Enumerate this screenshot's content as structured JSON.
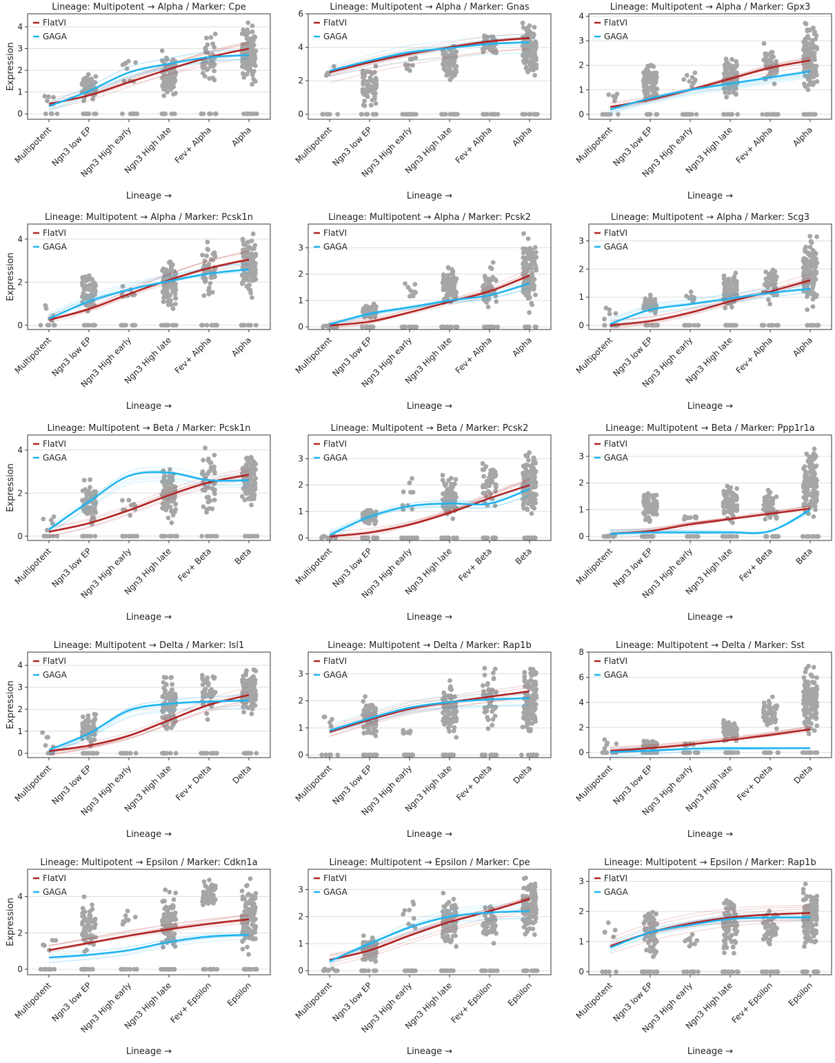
{
  "chart_data": [
    {
      "type": "line",
      "title": "Lineage: Multipotent → Alpha / Marker: Cpe",
      "xlabel": "Lineage →",
      "ylabel": "Expression",
      "categories": [
        "Multipotent",
        "Ngn3 low EP",
        "Ngn3 High early",
        "Ngn3 High late",
        "Fev+ Alpha",
        "Alpha"
      ],
      "ylim": [
        -0.25,
        4.6
      ],
      "yticks": [
        0,
        1,
        2,
        3,
        4
      ],
      "series": [
        {
          "name": "FlatVI",
          "values": [
            0.45,
            0.85,
            1.45,
            2.05,
            2.6,
            3.0
          ]
        },
        {
          "name": "GAGA",
          "values": [
            0.35,
            1.05,
            1.9,
            2.3,
            2.6,
            2.7
          ]
        }
      ],
      "scatter_ranges": [
        [
          0,
          1.3
        ],
        [
          0.4,
          2.1
        ],
        [
          0.9,
          3.1
        ],
        [
          0.5,
          3.0
        ],
        [
          1.2,
          3.9
        ],
        [
          1.1,
          4.4
        ]
      ]
    },
    {
      "type": "line",
      "title": "Lineage: Multipotent → Alpha / Marker: Gnas",
      "xlabel": "Lineage →",
      "ylabel": "",
      "categories": [
        "Multipotent",
        "Ngn3 low EP",
        "Ngn3 High early",
        "Ngn3 High late",
        "Fev+ Alpha",
        "Alpha"
      ],
      "ylim": [
        -0.3,
        6
      ],
      "yticks": [
        0,
        2,
        4,
        6
      ],
      "series": [
        {
          "name": "FlatVI",
          "values": [
            2.5,
            3.1,
            3.6,
            4.0,
            4.35,
            4.55
          ]
        },
        {
          "name": "GAGA",
          "values": [
            2.6,
            3.2,
            3.7,
            3.95,
            4.2,
            4.3
          ]
        }
      ],
      "scatter_ranges": [
        [
          1.5,
          3.0
        ],
        [
          0,
          3.4
        ],
        [
          2.3,
          3.9
        ],
        [
          1.8,
          4.5
        ],
        [
          3.3,
          5.0
        ],
        [
          1.5,
          5.8
        ]
      ]
    },
    {
      "type": "line",
      "title": "Lineage: Multipotent → Alpha / Marker: Gpx3",
      "xlabel": "Lineage →",
      "ylabel": "",
      "categories": [
        "Multipotent",
        "Ngn3 low EP",
        "Ngn3 High early",
        "Ngn3 High late",
        "Fev+ Alpha",
        "Alpha"
      ],
      "ylim": [
        -0.2,
        4.1
      ],
      "yticks": [
        0,
        1,
        2,
        3,
        4
      ],
      "series": [
        {
          "name": "FlatVI",
          "values": [
            0.3,
            0.6,
            1.0,
            1.45,
            1.9,
            2.2
          ]
        },
        {
          "name": "GAGA",
          "values": [
            0.2,
            0.65,
            1.0,
            1.25,
            1.5,
            1.75
          ]
        }
      ],
      "scatter_ranges": [
        [
          0,
          1.4
        ],
        [
          0.2,
          2.4
        ],
        [
          0.9,
          1.9
        ],
        [
          0.4,
          2.6
        ],
        [
          0.9,
          3.1
        ],
        [
          0.7,
          4.0
        ]
      ]
    },
    {
      "type": "line",
      "title": "Lineage: Multipotent → Alpha / Marker: Pcsk1n",
      "xlabel": "Lineage →",
      "ylabel": "Expression",
      "categories": [
        "Multipotent",
        "Ngn3 low EP",
        "Ngn3 High early",
        "Ngn3 High late",
        "Fev+ Alpha",
        "Alpha"
      ],
      "ylim": [
        -0.2,
        4.7
      ],
      "yticks": [
        0,
        2,
        4
      ],
      "series": [
        {
          "name": "FlatVI",
          "values": [
            0.25,
            0.75,
            1.45,
            2.1,
            2.65,
            3.05
          ]
        },
        {
          "name": "GAGA",
          "values": [
            0.3,
            1.1,
            1.65,
            2.05,
            2.4,
            2.6
          ]
        }
      ],
      "scatter_ranges": [
        [
          0,
          1.3
        ],
        [
          0.2,
          2.9
        ],
        [
          0.8,
          2.1
        ],
        [
          0.3,
          3.5
        ],
        [
          1.0,
          4.2
        ],
        [
          1.1,
          4.6
        ]
      ]
    },
    {
      "type": "line",
      "title": "Lineage: Multipotent → Alpha / Marker: Pcsk2",
      "xlabel": "Lineage →",
      "ylabel": "",
      "categories": [
        "Multipotent",
        "Ngn3 low EP",
        "Ngn3 High early",
        "Ngn3 High late",
        "Fev+ Alpha",
        "Alpha"
      ],
      "ylim": [
        -0.1,
        3.9
      ],
      "yticks": [
        0,
        1,
        2,
        3
      ],
      "series": [
        {
          "name": "FlatVI",
          "values": [
            0.05,
            0.2,
            0.55,
            0.95,
            1.35,
            1.95
          ]
        },
        {
          "name": "GAGA",
          "values": [
            0.1,
            0.5,
            0.75,
            1.0,
            1.2,
            1.65
          ]
        }
      ],
      "scatter_ranges": [
        [
          0,
          0.1
        ],
        [
          0.3,
          0.9
        ],
        [
          0.7,
          2.4
        ],
        [
          0.5,
          2.5
        ],
        [
          0.6,
          2.7
        ],
        [
          0.4,
          3.8
        ]
      ]
    },
    {
      "type": "line",
      "title": "Lineage: Multipotent → Alpha / Marker: Scg3",
      "xlabel": "Lineage →",
      "ylabel": "",
      "categories": [
        "Multipotent",
        "Ngn3 low EP",
        "Ngn3 High early",
        "Ngn3 High late",
        "Fev+ Alpha",
        "Alpha"
      ],
      "ylim": [
        -0.15,
        3.6
      ],
      "yticks": [
        0,
        1,
        2,
        3
      ],
      "series": [
        {
          "name": "FlatVI",
          "values": [
            0.0,
            0.15,
            0.45,
            0.85,
            1.2,
            1.6
          ]
        },
        {
          "name": "GAGA",
          "values": [
            0.05,
            0.55,
            0.75,
            0.95,
            1.15,
            1.3
          ]
        }
      ],
      "scatter_ranges": [
        [
          0,
          1.2
        ],
        [
          0.3,
          1.1
        ],
        [
          0.7,
          1.3
        ],
        [
          0.4,
          2.0
        ],
        [
          0.6,
          2.4
        ],
        [
          0.4,
          3.5
        ]
      ]
    },
    {
      "type": "line",
      "title": "Lineage: Multipotent → Beta / Marker: Pcsk1n",
      "xlabel": "Lineage →",
      "ylabel": "Expression",
      "categories": [
        "Multipotent",
        "Ngn3 low EP",
        "Ngn3 High early",
        "Ngn3 High late",
        "Fev+ Beta",
        "Beta"
      ],
      "ylim": [
        -0.2,
        4.7
      ],
      "yticks": [
        0,
        2,
        4
      ],
      "series": [
        {
          "name": "FlatVI",
          "values": [
            0.2,
            0.6,
            1.2,
            1.9,
            2.5,
            2.85
          ]
        },
        {
          "name": "GAGA",
          "values": [
            0.3,
            1.6,
            2.8,
            2.95,
            2.6,
            2.6
          ]
        }
      ],
      "scatter_ranges": [
        [
          0,
          1.3
        ],
        [
          0.2,
          2.9
        ],
        [
          0.7,
          2.1
        ],
        [
          0.4,
          3.6
        ],
        [
          0.6,
          4.5
        ],
        [
          1.0,
          4.5
        ]
      ]
    },
    {
      "type": "line",
      "title": "Lineage: Multipotent → Beta / Marker: Pcsk2",
      "xlabel": "Lineage →",
      "ylabel": "",
      "categories": [
        "Multipotent",
        "Ngn3 low EP",
        "Ngn3 High early",
        "Ngn3 High late",
        "Fev+ Beta",
        "Beta"
      ],
      "ylim": [
        -0.1,
        3.9
      ],
      "yticks": [
        0,
        1,
        2,
        3
      ],
      "series": [
        {
          "name": "FlatVI",
          "values": [
            0.05,
            0.2,
            0.5,
            0.95,
            1.5,
            2.0
          ]
        },
        {
          "name": "GAGA",
          "values": [
            0.1,
            0.8,
            1.2,
            1.3,
            1.3,
            1.85
          ]
        }
      ],
      "scatter_ranges": [
        [
          0,
          0.1
        ],
        [
          0.4,
          1.2
        ],
        [
          0.7,
          2.4
        ],
        [
          0.5,
          2.5
        ],
        [
          0.7,
          3.4
        ],
        [
          0.4,
          3.7
        ]
      ]
    },
    {
      "type": "line",
      "title": "Lineage: Multipotent → Beta / Marker: Ppp1r1a",
      "xlabel": "Lineage →",
      "ylabel": "",
      "categories": [
        "Multipotent",
        "Ngn3 low EP",
        "Ngn3 High early",
        "Ngn3 High late",
        "Fev+ Beta",
        "Beta"
      ],
      "ylim": [
        -0.15,
        3.8
      ],
      "yticks": [
        0,
        1,
        2,
        3
      ],
      "series": [
        {
          "name": "FlatVI",
          "values": [
            0.1,
            0.2,
            0.45,
            0.65,
            0.85,
            1.05
          ]
        },
        {
          "name": "GAGA",
          "values": [
            0.1,
            0.15,
            0.15,
            0.15,
            0.2,
            1.0
          ]
        }
      ],
      "scatter_ranges": [
        [
          0,
          0.05
        ],
        [
          0.3,
          1.9
        ],
        [
          0.6,
          0.8
        ],
        [
          0.4,
          2.1
        ],
        [
          0.5,
          1.8
        ],
        [
          0.3,
          3.7
        ]
      ]
    },
    {
      "type": "line",
      "title": "Lineage: Multipotent → Delta / Marker: Isl1",
      "xlabel": "Lineage →",
      "ylabel": "Expression",
      "categories": [
        "Multipotent",
        "Ngn3 low EP",
        "Ngn3 High early",
        "Ngn3 High late",
        "Fev+ Delta",
        "Delta"
      ],
      "ylim": [
        -0.2,
        4.6
      ],
      "yticks": [
        0,
        1,
        2,
        3,
        4
      ],
      "series": [
        {
          "name": "FlatVI",
          "values": [
            0.1,
            0.35,
            0.8,
            1.5,
            2.2,
            2.65
          ]
        },
        {
          "name": "GAGA",
          "values": [
            0.15,
            0.9,
            1.95,
            2.25,
            2.35,
            2.4
          ]
        }
      ],
      "scatter_ranges": [
        [
          0,
          1.3
        ],
        [
          0.3,
          1.9
        ],
        [
          0,
          0
        ],
        [
          0.4,
          4.0
        ],
        [
          1.3,
          4.5
        ],
        [
          1.6,
          4.1
        ]
      ]
    },
    {
      "type": "line",
      "title": "Lineage: Multipotent → Delta / Marker: Rap1b",
      "xlabel": "Lineage →",
      "ylabel": "",
      "categories": [
        "Multipotent",
        "Ngn3 low EP",
        "Ngn3 High early",
        "Ngn3 High late",
        "Fev+ Delta",
        "Delta"
      ],
      "ylim": [
        -0.1,
        3.8
      ],
      "yticks": [
        0,
        1,
        2,
        3
      ],
      "series": [
        {
          "name": "FlatVI",
          "values": [
            0.85,
            1.3,
            1.7,
            1.95,
            2.15,
            2.35
          ]
        },
        {
          "name": "GAGA",
          "values": [
            0.9,
            1.35,
            1.75,
            1.95,
            2.05,
            2.1
          ]
        }
      ],
      "scatter_ranges": [
        [
          0.8,
          1.9
        ],
        [
          0.2,
          2.5
        ],
        [
          0.7,
          1.0
        ],
        [
          0.3,
          2.9
        ],
        [
          0.7,
          3.7
        ],
        [
          0.5,
          3.6
        ]
      ]
    },
    {
      "type": "line",
      "title": "Lineage: Multipotent → Delta / Marker: Sst",
      "xlabel": "Lineage →",
      "ylabel": "",
      "categories": [
        "Multipotent",
        "Ngn3 low EP",
        "Ngn3 High early",
        "Ngn3 High late",
        "Fev+ Delta",
        "Delta"
      ],
      "ylim": [
        -0.4,
        8
      ],
      "yticks": [
        0,
        2,
        4,
        6,
        8
      ],
      "series": [
        {
          "name": "FlatVI",
          "values": [
            0.15,
            0.35,
            0.65,
            1.0,
            1.4,
            1.85
          ]
        },
        {
          "name": "GAGA",
          "values": [
            0.05,
            0.15,
            0.3,
            0.35,
            0.35,
            0.35
          ]
        }
      ],
      "scatter_ranges": [
        [
          0,
          1.3
        ],
        [
          0.2,
          1.1
        ],
        [
          0.5,
          0.8
        ],
        [
          0.7,
          2.8
        ],
        [
          1.0,
          5.1
        ],
        [
          1.0,
          7.6
        ]
      ]
    },
    {
      "type": "line",
      "title": "Lineage: Multipotent → Epsilon / Marker: Cdkn1a",
      "xlabel": "Lineage →",
      "ylabel": "Expression",
      "categories": [
        "Multipotent",
        "Ngn3 low EP",
        "Ngn3 High early",
        "Ngn3 High late",
        "Fev+ Epsilon",
        "Epsilon"
      ],
      "ylim": [
        -0.3,
        5.5
      ],
      "yticks": [
        0,
        2,
        4
      ],
      "series": [
        {
          "name": "FlatVI",
          "values": [
            1.05,
            1.45,
            1.85,
            2.2,
            2.5,
            2.75
          ]
        },
        {
          "name": "GAGA",
          "values": [
            0.65,
            0.8,
            1.05,
            1.5,
            1.8,
            1.9
          ]
        }
      ],
      "scatter_ranges": [
        [
          0.8,
          2.0
        ],
        [
          0.4,
          4.3
        ],
        [
          1.3,
          3.5
        ],
        [
          0.4,
          4.8
        ],
        [
          2.8,
          5.3
        ],
        [
          0.4,
          5.2
        ]
      ]
    },
    {
      "type": "line",
      "title": "Lineage: Multipotent → Epsilon / Marker: Cpe",
      "xlabel": "Lineage →",
      "ylabel": "",
      "categories": [
        "Multipotent",
        "Ngn3 low EP",
        "Ngn3 High early",
        "Ngn3 High late",
        "Fev+ Epsilon",
        "Epsilon"
      ],
      "ylim": [
        -0.15,
        3.75
      ],
      "yticks": [
        0,
        1,
        2,
        3
      ],
      "series": [
        {
          "name": "FlatVI",
          "values": [
            0.4,
            0.75,
            1.3,
            1.8,
            2.2,
            2.65
          ]
        },
        {
          "name": "GAGA",
          "values": [
            0.35,
            1.0,
            1.6,
            2.0,
            2.15,
            2.2
          ]
        }
      ],
      "scatter_ranges": [
        [
          0,
          0.1
        ],
        [
          0.2,
          1.4
        ],
        [
          1.2,
          3.1
        ],
        [
          0.6,
          3.0
        ],
        [
          0.6,
          2.9
        ],
        [
          1.1,
          3.7
        ]
      ]
    },
    {
      "type": "line",
      "title": "Lineage: Multipotent → Epsilon / Marker: Rap1b",
      "xlabel": "Lineage →",
      "ylabel": "",
      "categories": [
        "Multipotent",
        "Ngn3 low EP",
        "Ngn3 High early",
        "Ngn3 High late",
        "Fev+ Epsilon",
        "Epsilon"
      ],
      "ylim": [
        -0.1,
        3.4
      ],
      "yticks": [
        0,
        1,
        2,
        3
      ],
      "series": [
        {
          "name": "FlatVI",
          "values": [
            0.85,
            1.3,
            1.6,
            1.8,
            1.9,
            1.95
          ]
        },
        {
          "name": "GAGA",
          "values": [
            0.8,
            1.3,
            1.55,
            1.75,
            1.8,
            1.8
          ]
        }
      ],
      "scatter_ranges": [
        [
          0.8,
          1.9
        ],
        [
          0.2,
          2.5
        ],
        [
          0.7,
          1.4
        ],
        [
          0.3,
          2.9
        ],
        [
          0.5,
          2.3
        ],
        [
          0.5,
          3.2
        ]
      ]
    }
  ],
  "colors": {
    "FlatVI": "#b22222",
    "GAGA": "#1eb4f0",
    "points": "#a6a6a6",
    "grid": "#dddddd"
  },
  "legend_placement": "top-left",
  "grid": "horizontal"
}
